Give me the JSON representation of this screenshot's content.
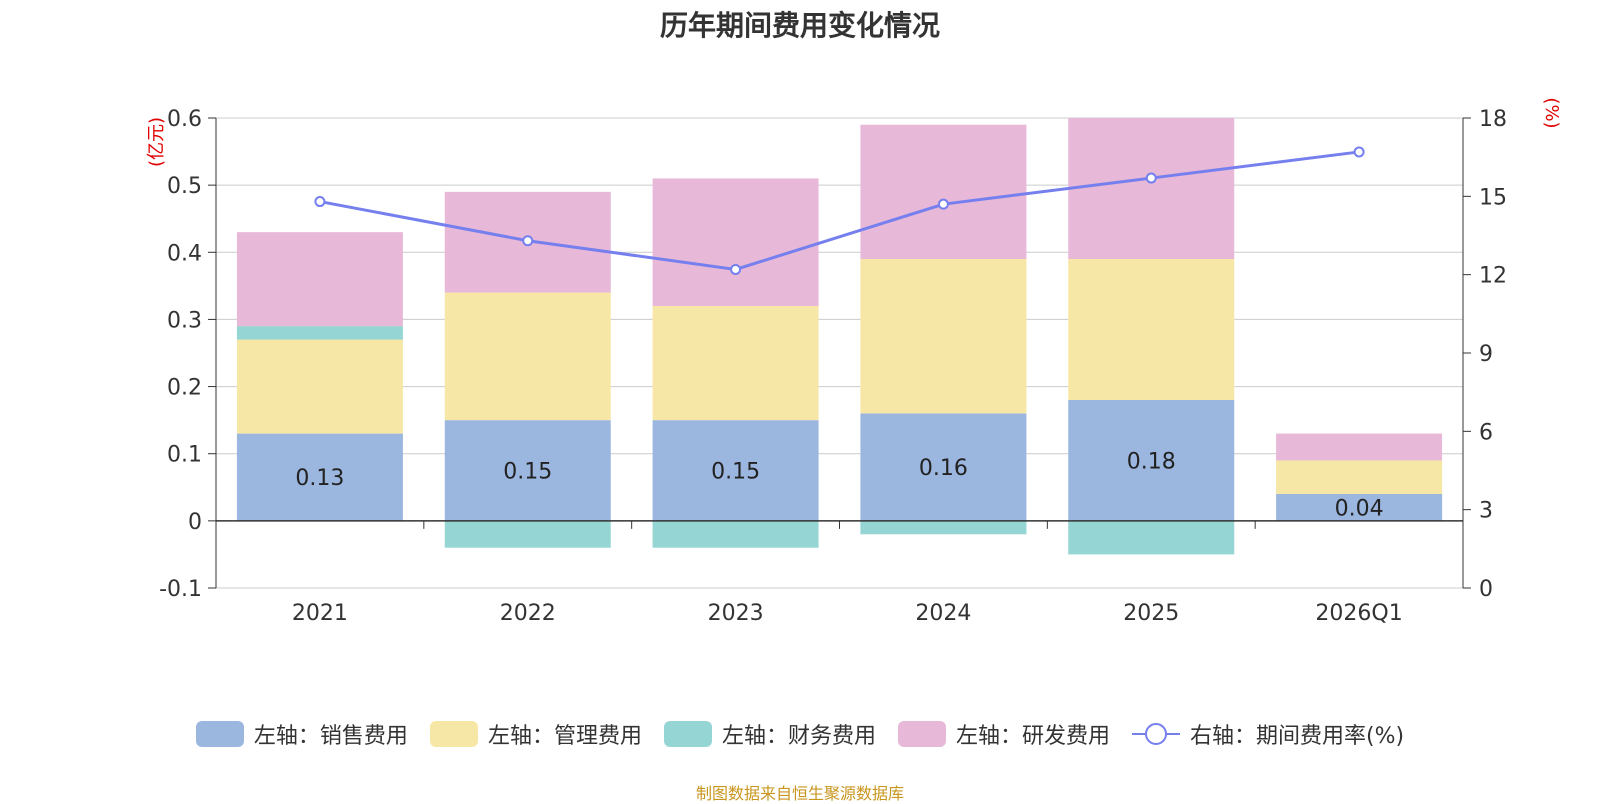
{
  "chart_data": {
    "type": "bar",
    "stacked": true,
    "title": "历年期间费用变化情况",
    "categories": [
      "2021",
      "2022",
      "2023",
      "2024",
      "2025",
      "2026Q1"
    ],
    "left_axis": {
      "unit_label": "(亿元)",
      "ylim": [
        -0.1,
        0.6
      ],
      "ticks": [
        -0.1,
        0,
        0.1,
        0.2,
        0.3,
        0.4,
        0.5,
        0.6
      ],
      "tick_labels": [
        "-0.1",
        "0",
        "0.1",
        "0.2",
        "0.3",
        "0.4",
        "0.5",
        "0.6"
      ]
    },
    "right_axis": {
      "unit_label": "(%)",
      "ylim": [
        0,
        18
      ],
      "ticks": [
        0,
        3,
        6,
        9,
        12,
        15,
        18
      ],
      "tick_labels": [
        "0",
        "3",
        "6",
        "9",
        "12",
        "15",
        "18"
      ]
    },
    "series": [
      {
        "name": "左轴：销售费用",
        "axis": "left",
        "type": "bar",
        "color": "#9bb7e0",
        "values": [
          0.13,
          0.15,
          0.15,
          0.16,
          0.18,
          0.04
        ],
        "data_labels": [
          "0.13",
          "0.15",
          "0.15",
          "0.16",
          "0.18",
          "0.04"
        ]
      },
      {
        "name": "左轴：管理费用",
        "axis": "left",
        "type": "bar",
        "color": "#f7e7a6",
        "values": [
          0.14,
          0.19,
          0.17,
          0.23,
          0.21,
          0.05
        ]
      },
      {
        "name": "左轴：财务费用",
        "axis": "left",
        "type": "bar",
        "color": "#95d5d3",
        "values": [
          0.02,
          -0.04,
          -0.04,
          -0.02,
          -0.05,
          0.0
        ]
      },
      {
        "name": "左轴：研发费用",
        "axis": "left",
        "type": "bar",
        "color": "#e8b8d9",
        "values": [
          0.14,
          0.15,
          0.19,
          0.2,
          0.21,
          0.04
        ]
      },
      {
        "name": "右轴：期间费用率(%)",
        "axis": "right",
        "type": "line",
        "color": "#7580ee",
        "values": [
          14.8,
          13.3,
          12.2,
          14.7,
          15.7,
          16.7
        ]
      }
    ],
    "legend_position": "bottom",
    "grid": true
  },
  "source_note": "制图数据来自恒生聚源数据库"
}
